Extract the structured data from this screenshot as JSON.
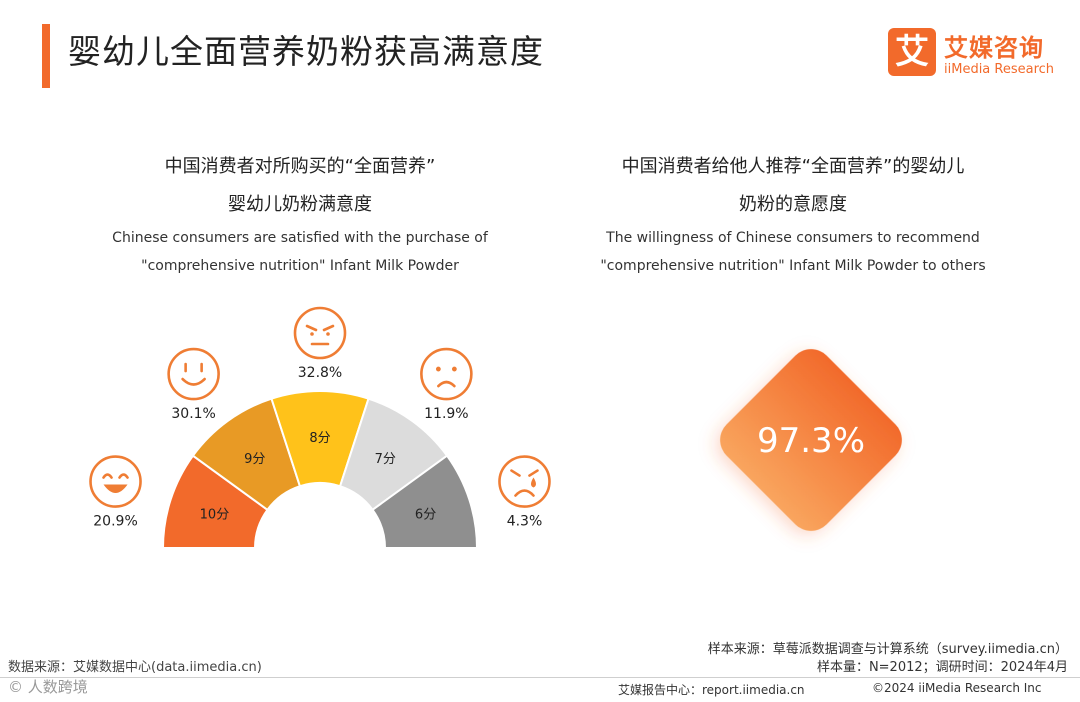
{
  "header": {
    "title": "婴幼儿全面营养奶粉获高满意度",
    "logo_mark": "艾",
    "logo_cn": "艾媒咨询",
    "logo_en": "iiMedia Research"
  },
  "left_panel": {
    "title_cn_1": "中国消费者对所购买的“全面营养”",
    "title_cn_2": "婴幼儿奶粉满意度",
    "title_en_1": "Chinese consumers are satisfied with the purchase of",
    "title_en_2": "\"comprehensive nutrition\" Infant Milk Powder"
  },
  "right_panel": {
    "title_cn_1": "中国消费者给他人推荐“全面营养”的婴幼儿",
    "title_cn_2": "奶粉的意愿度",
    "title_en_1": "The willingness of Chinese consumers to recommend",
    "title_en_2": "\"comprehensive nutrition\" Infant Milk Powder to others"
  },
  "chart_data": [
    {
      "type": "pie",
      "subtype": "half-donut",
      "title": "中国消费者对所购买的“全面营养”婴幼儿奶粉满意度",
      "categories": [
        "10分",
        "9分",
        "8分",
        "7分",
        "6分"
      ],
      "values": [
        20.9,
        30.1,
        32.8,
        11.9,
        4.3
      ],
      "value_labels": [
        "20.9%",
        "30.1%",
        "32.8%",
        "11.9%",
        "4.3%"
      ],
      "faces": [
        "laughing",
        "smile",
        "neutral",
        "frown",
        "crying"
      ],
      "colors": [
        "#f26a2b",
        "#e89a25",
        "#ffc21a",
        "#dcdcdc",
        "#8f8f8f"
      ],
      "segment_span_fraction": 0.2
    },
    {
      "type": "table",
      "title": "中国消费者给他人推荐“全面营养”的婴幼儿奶粉的意愿度",
      "value": 97.3,
      "value_label": "97.3%",
      "color": "#f47a35"
    }
  ],
  "footer": {
    "source_left": "数据来源：艾媒数据中心(data.iimedia.cn)",
    "watermark": "©  人数跨境",
    "sample_source": "样本来源：草莓派数据调查与计算系统（survey.iimedia.cn）",
    "sample_size": "样本量：N=2012；调研时间：2024年4月",
    "report_center": "艾媒报告中心：report.iimedia.cn",
    "copyright": "©2024  iiMedia Research  Inc"
  },
  "colors": {
    "accent": "#f26a2b",
    "face": "#ef7d34"
  }
}
